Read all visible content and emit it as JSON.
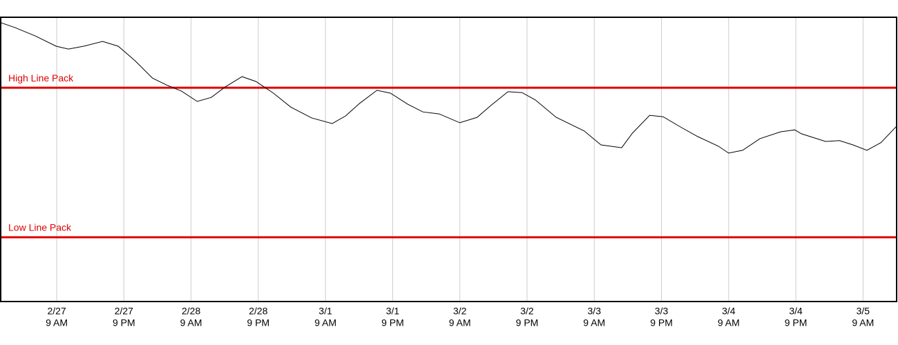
{
  "chart_data": {
    "type": "line",
    "x": [
      -1,
      1.5,
      5.2,
      8.9,
      11.1,
      13.8,
      17.2,
      20.0,
      23.0,
      26.1,
      28.6,
      31.3,
      34.1,
      36.6,
      39.1,
      42.1,
      44.6,
      47.7,
      50.8,
      54.5,
      58.2,
      60.6,
      63.1,
      66.2,
      68.6,
      71.7,
      74.4,
      77.3,
      81.0,
      84.1,
      86.5,
      89.6,
      92.1,
      94.5,
      98.2,
      103.2,
      106.2,
      109.9,
      111.8,
      114.9,
      117.3,
      120.4,
      123.5,
      127.2,
      129.0,
      131.5,
      134.6,
      138.3,
      140.8,
      142.0,
      146.3,
      148.8,
      151.2,
      153.7,
      156.2,
      159
    ],
    "values": [
      98.1,
      96.4,
      93.4,
      89.8,
      88.8,
      89.8,
      91.5,
      89.8,
      84.7,
      78.6,
      76.2,
      74.0,
      70.4,
      71.8,
      75.5,
      79.1,
      77.4,
      73.3,
      68.4,
      64.6,
      62.6,
      65.3,
      69.7,
      74.3,
      73.3,
      69.4,
      66.7,
      66.0,
      62.9,
      64.8,
      68.9,
      73.8,
      73.5,
      70.9,
      64.8,
      60.0,
      55.1,
      54.1,
      59.2,
      65.5,
      65.0,
      61.4,
      58.0,
      54.6,
      52.2,
      53.2,
      57.3,
      59.7,
      60.4,
      59.0,
      56.3,
      56.6,
      55.1,
      53.2,
      55.9,
      61.7
    ],
    "color": "#000000",
    "xlim": [
      -1,
      159
    ],
    "ylim": [
      0,
      100
    ],
    "xticks": [
      {
        "value": 9,
        "label": "2/27",
        "time": "9 AM"
      },
      {
        "value": 21,
        "label": "2/27",
        "time": "9 PM"
      },
      {
        "value": 33,
        "label": "2/28",
        "time": "9 AM"
      },
      {
        "value": 45,
        "label": "2/28",
        "time": "9 PM"
      },
      {
        "value": 57,
        "label": "3/1",
        "time": "9 AM"
      },
      {
        "value": 69,
        "label": "3/1",
        "time": "9 PM"
      },
      {
        "value": 81,
        "label": "3/2",
        "time": "9 AM"
      },
      {
        "value": 93,
        "label": "3/2",
        "time": "9 PM"
      },
      {
        "value": 105,
        "label": "3/3",
        "time": "9 AM"
      },
      {
        "value": 117,
        "label": "3/3",
        "time": "9 PM"
      },
      {
        "value": 129,
        "label": "3/4",
        "time": "9 AM"
      },
      {
        "value": 141,
        "label": "3/4",
        "time": "9 PM"
      },
      {
        "value": 153,
        "label": "3/5",
        "time": "9 AM"
      }
    ],
    "grid": true,
    "reference_lines": [
      {
        "label": "High Line Pack",
        "value": 75.2,
        "color": "#e00000"
      },
      {
        "label": "Low Line Pack",
        "value": 22.6,
        "color": "#e00000"
      }
    ]
  }
}
